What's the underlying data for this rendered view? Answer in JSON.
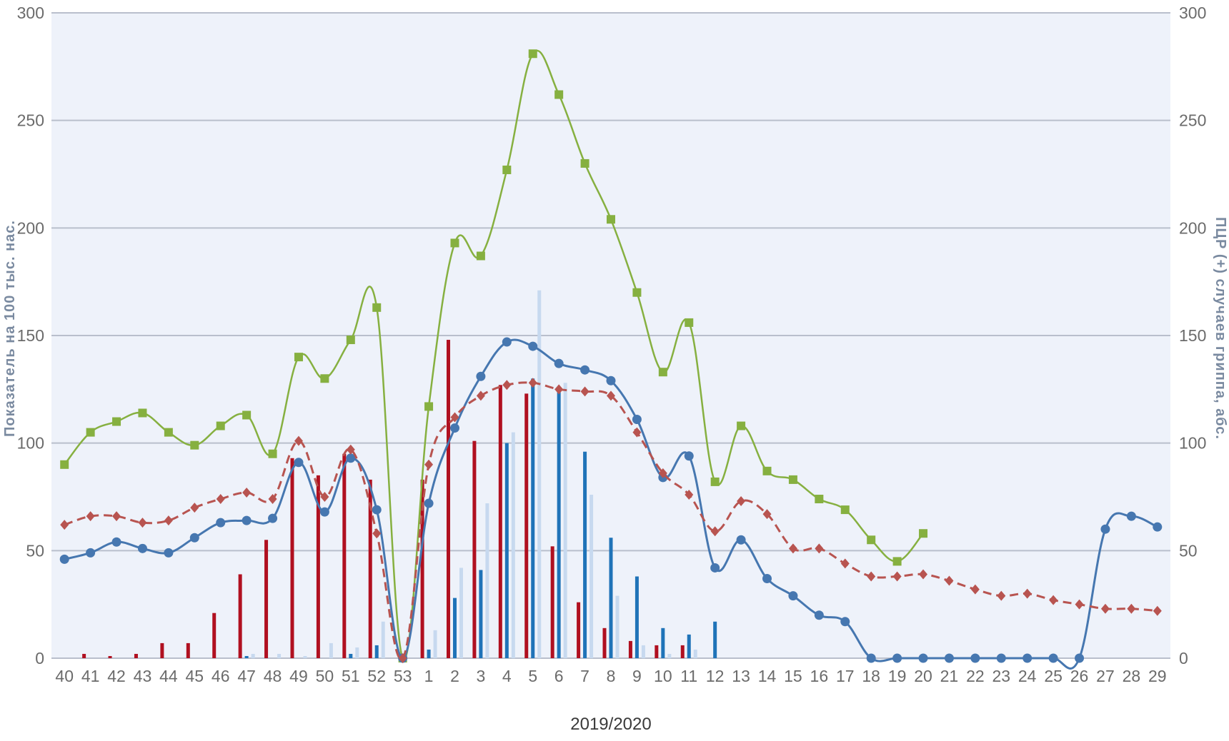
{
  "chart_data": {
    "type": "bar+line",
    "xlabel": "2019/2020",
    "ylabel_left": "Показатель на 100 тыс. нас.",
    "ylabel_right": "ПЦР (+) случаев гриппа, абс.",
    "ylim_left": [
      0,
      300
    ],
    "ylim_right": [
      0,
      300
    ],
    "yticks": [
      "0",
      "50",
      "100",
      "150",
      "200",
      "250",
      "300"
    ],
    "grid": "horizontal",
    "colors": {
      "plot_bg": "#eef2fa",
      "grid": "#b9bfcc",
      "green_line": "#86b040",
      "blue_line": "#4677b0",
      "red_dashed": "#b85450",
      "bar_dark_red": "#b01020",
      "bar_blue": "#1f73b8",
      "bar_light_blue": "#c7d9ef"
    },
    "categories": [
      "40",
      "41",
      "42",
      "43",
      "44",
      "45",
      "46",
      "47",
      "48",
      "49",
      "50",
      "51",
      "52",
      "53",
      "1",
      "2",
      "3",
      "4",
      "5",
      "6",
      "7",
      "8",
      "9",
      "10",
      "11",
      "12",
      "13",
      "14",
      "15",
      "16",
      "17",
      "18",
      "19",
      "20",
      "21",
      "22",
      "23",
      "24",
      "25",
      "26",
      "27",
      "28",
      "29"
    ],
    "series": [
      {
        "kind": "line",
        "color": "#86b040",
        "marker": "square",
        "values": [
          90,
          105,
          110,
          114,
          105,
          99,
          108,
          113,
          95,
          140,
          130,
          148,
          163,
          0,
          117,
          193,
          187,
          227,
          281,
          262,
          230,
          204,
          170,
          133,
          156,
          82,
          108,
          87,
          83,
          74,
          69,
          55,
          45,
          58,
          null,
          null,
          null,
          null,
          null,
          null,
          null,
          null,
          null
        ]
      },
      {
        "kind": "line",
        "color": "#4677b0",
        "marker": "circle",
        "values": [
          46,
          49,
          54,
          51,
          49,
          56,
          63,
          64,
          65,
          91,
          68,
          93,
          69,
          0,
          72,
          107,
          131,
          147,
          145,
          137,
          134,
          129,
          111,
          84,
          94,
          42,
          55,
          37,
          29,
          20,
          17,
          0,
          0,
          0,
          0,
          0,
          0,
          0,
          0,
          0,
          60,
          66,
          61
        ]
      },
      {
        "kind": "line",
        "color": "#b85450",
        "marker": "diamond",
        "dashed": true,
        "values": [
          62,
          66,
          66,
          63,
          64,
          70,
          74,
          77,
          74,
          101,
          75,
          97,
          58,
          0,
          90,
          112,
          122,
          127,
          128,
          125,
          124,
          122,
          105,
          86,
          76,
          59,
          73,
          67,
          51,
          51,
          44,
          38,
          38,
          39,
          36,
          32,
          29,
          30,
          27,
          25,
          23,
          23,
          22
        ]
      },
      {
        "kind": "bar",
        "color": "#b01020",
        "values": [
          0,
          2,
          1,
          2,
          7,
          7,
          21,
          39,
          55,
          93,
          85,
          95,
          83,
          0,
          83,
          148,
          101,
          127,
          123,
          52,
          26,
          14,
          8,
          6,
          6,
          0,
          0,
          0,
          0,
          0,
          0,
          0,
          0,
          0,
          0,
          0,
          0,
          0,
          0,
          0,
          0,
          0,
          0
        ]
      },
      {
        "kind": "bar",
        "color": "#1f73b8",
        "values": [
          0,
          0,
          0,
          0,
          0,
          0,
          0,
          1,
          0,
          0,
          0,
          2,
          6,
          0,
          4,
          28,
          41,
          100,
          130,
          125,
          96,
          56,
          38,
          14,
          11,
          17,
          0,
          0,
          0,
          0,
          0,
          0,
          0,
          0,
          0,
          0,
          0,
          0,
          0,
          0,
          0,
          0,
          0
        ]
      },
      {
        "kind": "bar",
        "color": "#c7d9ef",
        "values": [
          0,
          0,
          0,
          0,
          0,
          0,
          0,
          2,
          2,
          1,
          7,
          5,
          17,
          0,
          13,
          42,
          72,
          105,
          171,
          128,
          76,
          29,
          6,
          2,
          4,
          0,
          0,
          0,
          0,
          0,
          0,
          0,
          0,
          0,
          0,
          0,
          0,
          0,
          0,
          0,
          0,
          0,
          0
        ]
      }
    ]
  }
}
